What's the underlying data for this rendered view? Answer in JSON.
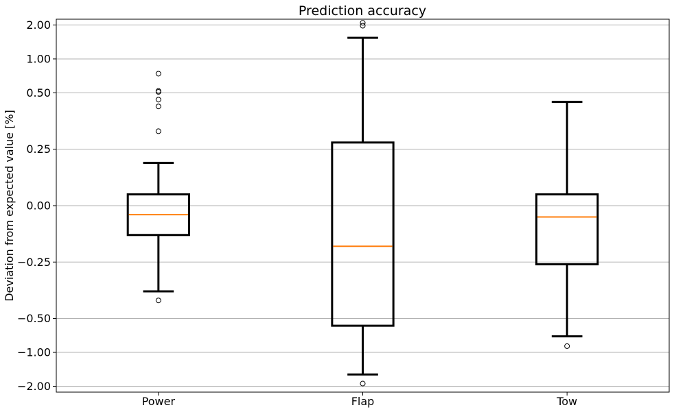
{
  "chart_data": {
    "type": "box",
    "title": "Prediction accuracy",
    "xlabel": "",
    "ylabel": "Deviation from expected value [%]",
    "y_scale": "symlog",
    "ylim": [
      -2.25,
      2.25
    ],
    "yticks": [
      -2.0,
      -1.0,
      -0.5,
      -0.25,
      0.0,
      0.25,
      0.5,
      1.0,
      2.0
    ],
    "ytick_labels": [
      "−2.00",
      "−1.00",
      "−0.50",
      "−0.25",
      "0.00",
      "0.25",
      "0.50",
      "1.00",
      "2.00"
    ],
    "grid": "horizontal",
    "categories": [
      "Power",
      "Flap",
      "Tow"
    ],
    "boxes": [
      {
        "name": "Power",
        "whisker_low": -0.38,
        "q1": -0.13,
        "median": -0.04,
        "q3": 0.05,
        "whisker_high": 0.19,
        "outliers": [
          0.74,
          0.52,
          0.51,
          0.47,
          0.44,
          0.33,
          -0.42
        ]
      },
      {
        "name": "Flap",
        "whisker_low": -1.57,
        "q1": -0.58,
        "median": -0.18,
        "q3": 0.28,
        "whisker_high": 1.54,
        "outliers": [
          2.09,
          1.97,
          -1.89
        ]
      },
      {
        "name": "Tow",
        "whisker_low": -0.72,
        "q1": -0.26,
        "median": -0.05,
        "q3": 0.05,
        "whisker_high": 0.46,
        "outliers": [
          -0.88
        ]
      }
    ],
    "colors": {
      "box": "#000000",
      "median": "#ff7f0e",
      "grid": "#b0b0b0",
      "outlier": "#000000"
    }
  }
}
